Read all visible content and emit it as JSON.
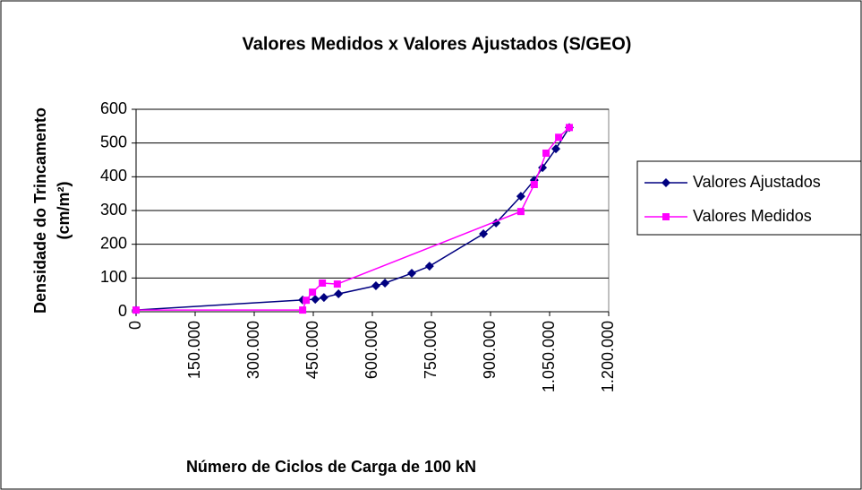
{
  "chart_data": {
    "type": "line",
    "title": "Valores Medidos x Valores Ajustados (S/GEO)",
    "x_label": "Número de Ciclos de Carga de 100 kN",
    "y_label": [
      "Densidade do Trincamento",
      "(cm/m²)"
    ],
    "xlim": [
      0,
      1200000
    ],
    "xticks": [
      0,
      {
        "value": 150000,
        "label": "150.000"
      },
      {
        "value": 300000,
        "label": "300.000"
      },
      {
        "value": 450000,
        "label": "450.000"
      },
      {
        "value": 600000,
        "label": "600.000"
      },
      {
        "value": 750000,
        "label": "750.000"
      },
      {
        "value": 900000,
        "label": "900.000"
      },
      {
        "value": 1050000,
        "label": "1.050.000"
      },
      {
        "value": 1200000,
        "label": "1.200.000"
      }
    ],
    "ylim": [
      0,
      600
    ],
    "yticks": [
      0,
      100,
      200,
      300,
      400,
      500,
      600
    ],
    "grid": true,
    "legend": "right",
    "series": [
      {
        "name": "Valores Ajustados",
        "color": "#000080",
        "marker": "diamond",
        "x": [
          0,
          423000,
          455000,
          477000,
          514000,
          609000,
          632000,
          700000,
          745000,
          882000,
          914000,
          977000,
          1011000,
          1032000,
          1066000,
          1100000
        ],
        "values": [
          5,
          35,
          37,
          42,
          53,
          77,
          85,
          114,
          135,
          231,
          263,
          342,
          390,
          427,
          483,
          546
        ]
      },
      {
        "name": "Valores Medidos",
        "color": "#ff00ff",
        "marker": "square",
        "x": [
          0,
          423000,
          432000,
          448000,
          473000,
          511000,
          977000,
          1011000,
          1041000,
          1073000,
          1100000
        ],
        "values": [
          5,
          5,
          34,
          58,
          85,
          82,
          297,
          377,
          470,
          517,
          546
        ]
      }
    ]
  }
}
